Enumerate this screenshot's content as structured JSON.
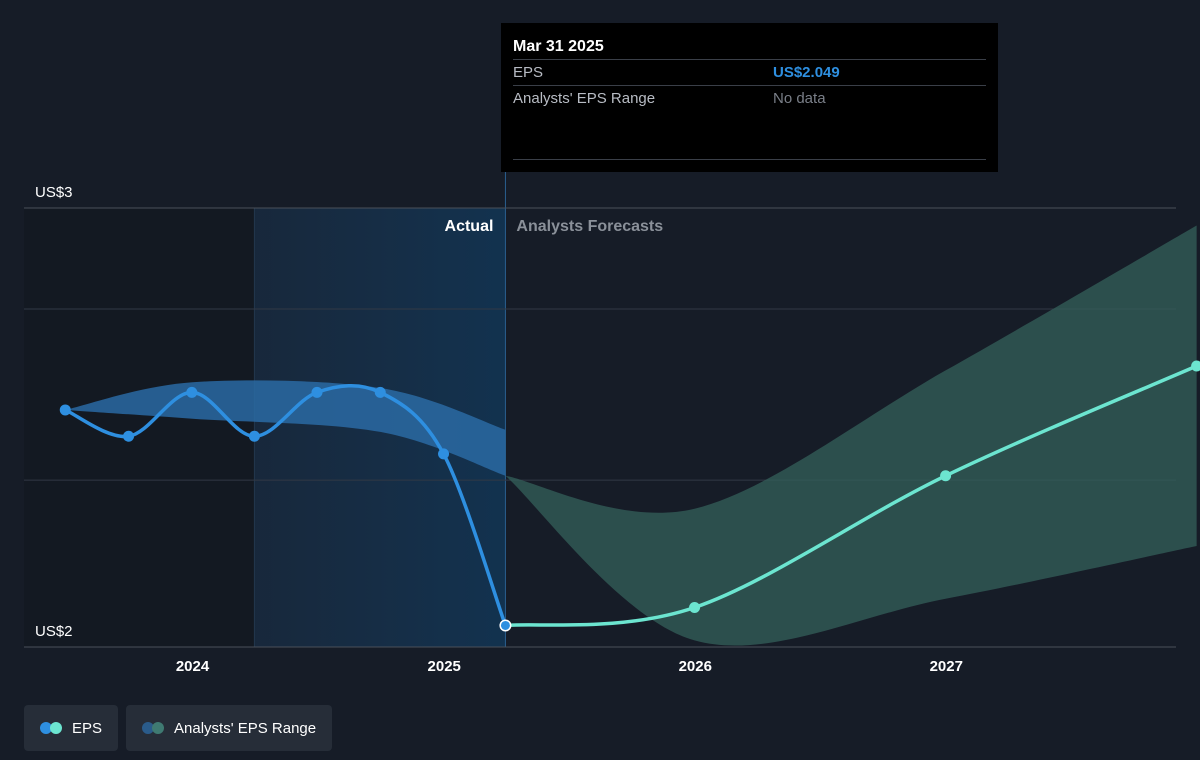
{
  "tooltip": {
    "date": "Mar 31 2025",
    "rows": [
      {
        "label": "EPS",
        "value": "US$2.049"
      },
      {
        "label": "Analysts' EPS Range",
        "value": "No data"
      }
    ]
  },
  "legend": {
    "items": [
      {
        "label": "EPS",
        "colors": [
          "#2e8fe0",
          "#6ce5d0"
        ]
      },
      {
        "label": "Analysts' EPS Range",
        "colors": [
          "#2a5b8a",
          "#3f7a72"
        ]
      }
    ]
  },
  "chart_data": {
    "type": "line",
    "x_range": [
      "2023-05-01",
      "2027-12-01"
    ],
    "y_range": [
      2.0,
      3.0
    ],
    "y_tick_labels": [
      {
        "value": 3.0,
        "label": "US$3"
      },
      {
        "value": 2.0,
        "label": "US$2"
      }
    ],
    "gridlines": [
      2.0,
      2.38,
      2.77,
      3.0
    ],
    "x_tick_labels": [
      {
        "date": "2024-01-01",
        "label": "2024"
      },
      {
        "date": "2025-01-01",
        "label": "2025"
      },
      {
        "date": "2026-01-01",
        "label": "2026"
      },
      {
        "date": "2027-01-01",
        "label": "2027"
      }
    ],
    "region_labels": {
      "past": "Actual",
      "forecast": "Analysts Forecasts"
    },
    "divider_date": "2025-03-31",
    "highlight_start": "2024-03-31",
    "colors": {
      "eps_actual": "#2e8fe0",
      "eps_forecast": "#6ce5d0",
      "range_actual": "#2a6aa3",
      "range_forecast": "#34605b"
    },
    "series": [
      {
        "name": "EPS",
        "points": [
          {
            "x": "2023-06-30",
            "y": 2.54
          },
          {
            "x": "2023-09-30",
            "y": 2.48
          },
          {
            "x": "2023-12-31",
            "y": 2.58
          },
          {
            "x": "2024-03-31",
            "y": 2.48
          },
          {
            "x": "2024-06-30",
            "y": 2.58
          },
          {
            "x": "2024-09-30",
            "y": 2.58
          },
          {
            "x": "2024-12-31",
            "y": 2.44
          },
          {
            "x": "2025-03-31",
            "y": 2.049
          }
        ]
      },
      {
        "name": "EPS",
        "points": [
          {
            "x": "2025-03-31",
            "y": 2.049
          },
          {
            "x": "2025-12-31",
            "y": 2.09
          },
          {
            "x": "2026-12-31",
            "y": 2.39
          },
          {
            "x": "2027-12-31",
            "y": 2.64
          }
        ]
      }
    ],
    "ranges": [
      {
        "name": "Analysts' EPS Range",
        "upper": [
          {
            "x": "2023-06-30",
            "y": 2.54
          },
          {
            "x": "2024-01-01",
            "y": 2.603
          },
          {
            "x": "2024-09-30",
            "y": 2.59
          },
          {
            "x": "2025-03-31",
            "y": 2.495
          }
        ],
        "lower": [
          {
            "x": "2023-06-30",
            "y": 2.54
          },
          {
            "x": "2024-01-01",
            "y": 2.52
          },
          {
            "x": "2024-09-30",
            "y": 2.49
          },
          {
            "x": "2025-03-31",
            "y": 2.39
          }
        ]
      },
      {
        "name": "Analysts' EPS Range",
        "upper": [
          {
            "x": "2025-03-31",
            "y": 2.39
          },
          {
            "x": "2025-12-31",
            "y": 2.315
          },
          {
            "x": "2026-12-31",
            "y": 2.63
          },
          {
            "x": "2027-12-31",
            "y": 2.96
          }
        ],
        "lower": [
          {
            "x": "2025-03-31",
            "y": 2.39
          },
          {
            "x": "2025-12-31",
            "y": 2.015
          },
          {
            "x": "2026-12-31",
            "y": 2.11
          },
          {
            "x": "2027-12-31",
            "y": 2.23
          }
        ]
      }
    ]
  }
}
